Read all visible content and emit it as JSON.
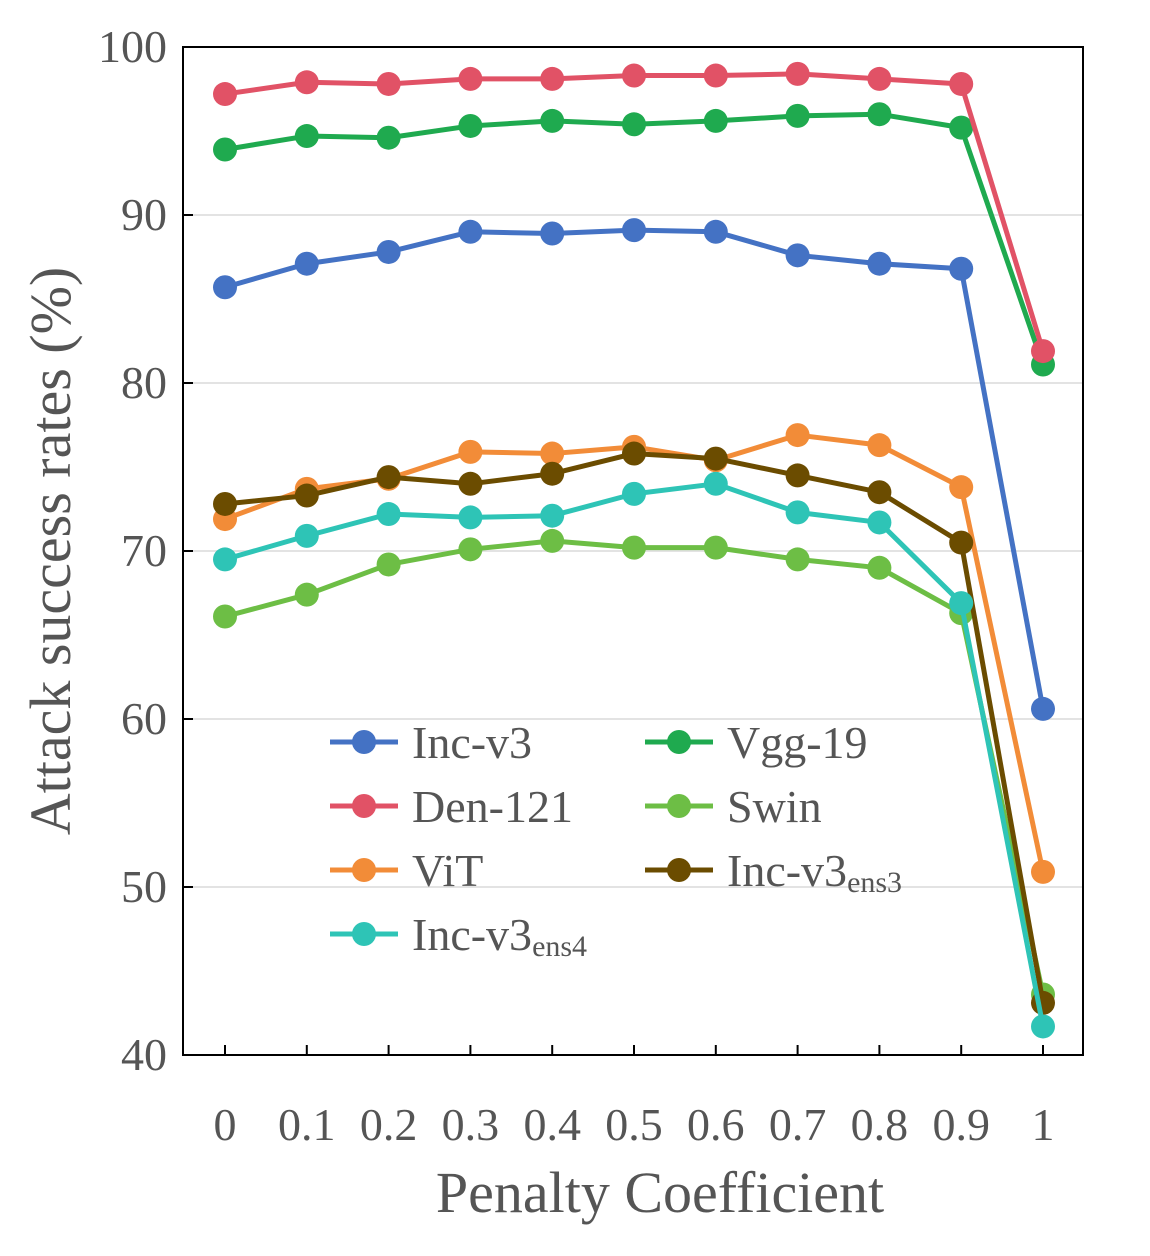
{
  "chart_data": {
    "type": "line",
    "title": "",
    "xlabel": "Penalty Coefficient",
    "ylabel": "Attack success rates (%)",
    "x": [
      0,
      0.1,
      0.2,
      0.3,
      0.4,
      0.5,
      0.6,
      0.7,
      0.8,
      0.9,
      1
    ],
    "x_tick_labels": [
      "0",
      "0.1",
      "0.2",
      "0.3",
      "0.4",
      "0.5",
      "0.6",
      "0.7",
      "0.8",
      "0.9",
      "1"
    ],
    "ylim": [
      40,
      100
    ],
    "y_ticks": [
      40,
      50,
      60,
      70,
      80,
      90,
      100
    ],
    "grid": "horizontal",
    "legend_position": "lower-center",
    "series": [
      {
        "name": "Inc-v3",
        "sub": "",
        "color": "#4472C4",
        "values": [
          85.7,
          87.1,
          87.8,
          89.0,
          88.9,
          89.1,
          89.0,
          87.6,
          87.1,
          86.8,
          60.6
        ]
      },
      {
        "name": "Vgg-19",
        "sub": "",
        "color": "#1FAA4F",
        "values": [
          93.9,
          94.7,
          94.6,
          95.3,
          95.6,
          95.4,
          95.6,
          95.9,
          96.0,
          95.2,
          81.1
        ]
      },
      {
        "name": "Den-121",
        "sub": "",
        "color": "#E15266",
        "values": [
          97.2,
          97.9,
          97.8,
          98.1,
          98.1,
          98.3,
          98.3,
          98.4,
          98.1,
          97.8,
          81.9
        ]
      },
      {
        "name": "Swin",
        "sub": "",
        "color": "#6DBE45",
        "values": [
          66.1,
          67.4,
          69.2,
          70.1,
          70.6,
          70.2,
          70.2,
          69.5,
          69.0,
          66.3,
          43.6
        ]
      },
      {
        "name": "ViT",
        "sub": "",
        "color": "#F28C38",
        "values": [
          71.9,
          73.7,
          74.3,
          75.9,
          75.8,
          76.2,
          75.4,
          76.9,
          76.3,
          73.8,
          50.9
        ]
      },
      {
        "name": "Inc-v3",
        "sub": "ens3",
        "color": "#6B4C00",
        "values": [
          72.8,
          73.3,
          74.4,
          74.0,
          74.6,
          75.8,
          75.5,
          74.5,
          73.5,
          70.5,
          43.1
        ]
      },
      {
        "name": "Inc-v3",
        "sub": "ens4",
        "color": "#2EC4B6",
        "values": [
          69.5,
          70.9,
          72.2,
          72.0,
          72.1,
          73.4,
          74.0,
          72.3,
          71.7,
          66.9,
          41.7
        ]
      }
    ]
  }
}
